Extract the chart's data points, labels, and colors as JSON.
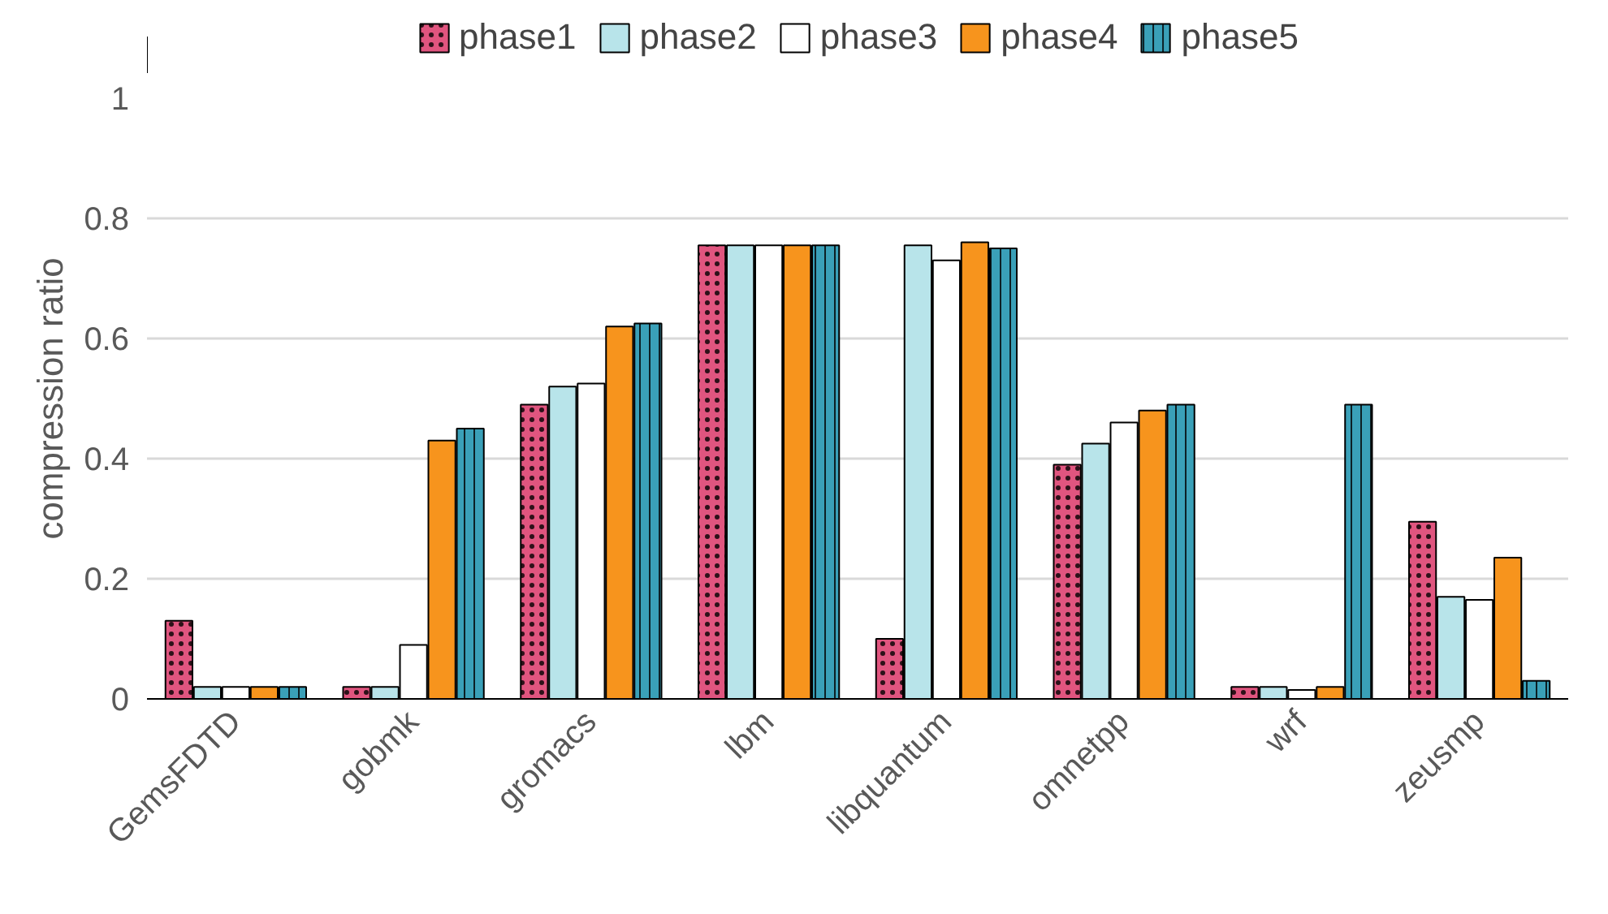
{
  "chart_data": {
    "type": "bar",
    "ylabel": "compression ratio",
    "categories": [
      "GemsFDTD",
      "gobmk",
      "gromacs",
      "lbm",
      "libquantum",
      "omnetpp",
      "wrf",
      "zeusmp"
    ],
    "series": [
      {
        "name": "phase1",
        "color": "#e0557f",
        "values": [
          0.13,
          0.02,
          0.49,
          0.755,
          0.1,
          0.39,
          0.02,
          0.295
        ]
      },
      {
        "name": "phase2",
        "color": "#b8e4ea",
        "values": [
          0.02,
          0.02,
          0.52,
          0.755,
          0.755,
          0.425,
          0.02,
          0.17
        ]
      },
      {
        "name": "phase3",
        "color": "#ffffff",
        "values": [
          0.02,
          0.09,
          0.525,
          0.755,
          0.73,
          0.46,
          0.015,
          0.165
        ]
      },
      {
        "name": "phase4",
        "color": "#f7941d",
        "values": [
          0.02,
          0.43,
          0.62,
          0.755,
          0.76,
          0.48,
          0.02,
          0.235
        ]
      },
      {
        "name": "phase5",
        "color": "#3aa0b8",
        "values": [
          0.02,
          0.45,
          0.625,
          0.755,
          0.75,
          0.49,
          0.49,
          0.03
        ]
      }
    ],
    "ylim": [
      0,
      1
    ],
    "yticks": [
      0,
      0.2,
      0.4,
      0.6,
      0.8,
      1
    ],
    "grid": "y",
    "legend": "top"
  }
}
